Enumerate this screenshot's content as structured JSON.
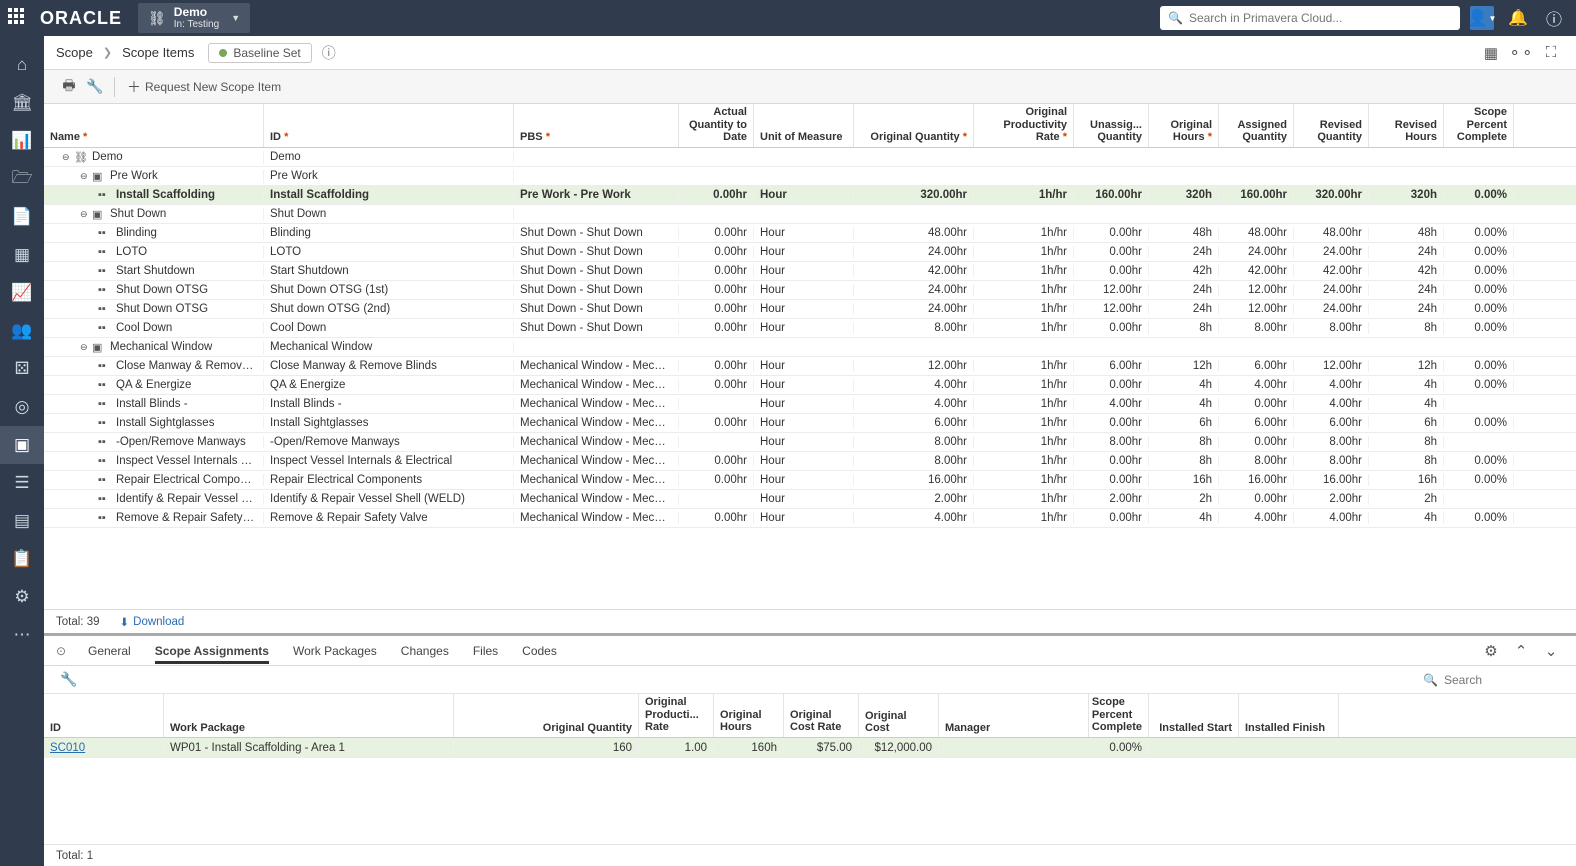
{
  "topbar": {
    "logo": "ORACLE",
    "project_name": "Demo",
    "project_sub": "In: Testing",
    "search_placeholder": "Search in Primavera Cloud..."
  },
  "breadcrumb": {
    "root": "Scope",
    "current": "Scope Items",
    "baseline_label": "Baseline Set"
  },
  "toolbar": {
    "request_btn": "Request New Scope Item"
  },
  "columns": {
    "name": "Name",
    "id": "ID",
    "pbs": "PBS",
    "actual_qty": "Actual Quantity to Date",
    "uom": "Unit of Measure",
    "orig_qty": "Original Quantity",
    "rate": "Original Productivity Rate",
    "unasg": "Unassig... Quantity",
    "orig_hours": "Original Hours",
    "asg_qty": "Assigned Quantity",
    "rev_qty": "Revised Quantity",
    "rev_hours": "Revised Hours",
    "spc": "Scope Percent Complete"
  },
  "rows": [
    {
      "type": "group",
      "level": 0,
      "name": "Demo",
      "id": "Demo"
    },
    {
      "type": "group",
      "level": 1,
      "name": "Pre Work",
      "id": "Pre Work"
    },
    {
      "type": "leaf",
      "level": 2,
      "sel": true,
      "name": "Install Scaffolding",
      "id": "Install Scaffolding",
      "pbs": "Pre Work - Pre Work",
      "actq": "0.00hr",
      "uom": "Hour",
      "origq": "320.00hr",
      "rate": "1h/hr",
      "unasg": "160.00hr",
      "origh": "320h",
      "asgq": "160.00hr",
      "revq": "320.00hr",
      "revh": "320h",
      "spc": "0.00%"
    },
    {
      "type": "group",
      "level": 1,
      "name": "Shut Down",
      "id": "Shut Down"
    },
    {
      "type": "leaf",
      "level": 2,
      "name": "Blinding",
      "id": "Blinding",
      "pbs": "Shut Down - Shut Down",
      "actq": "0.00hr",
      "uom": "Hour",
      "origq": "48.00hr",
      "rate": "1h/hr",
      "unasg": "0.00hr",
      "origh": "48h",
      "asgq": "48.00hr",
      "revq": "48.00hr",
      "revh": "48h",
      "spc": "0.00%"
    },
    {
      "type": "leaf",
      "level": 2,
      "name": "LOTO",
      "id": "LOTO",
      "pbs": "Shut Down - Shut Down",
      "actq": "0.00hr",
      "uom": "Hour",
      "origq": "24.00hr",
      "rate": "1h/hr",
      "unasg": "0.00hr",
      "origh": "24h",
      "asgq": "24.00hr",
      "revq": "24.00hr",
      "revh": "24h",
      "spc": "0.00%"
    },
    {
      "type": "leaf",
      "level": 2,
      "name": "Start Shutdown",
      "id": "Start Shutdown",
      "pbs": "Shut Down - Shut Down",
      "actq": "0.00hr",
      "uom": "Hour",
      "origq": "42.00hr",
      "rate": "1h/hr",
      "unasg": "0.00hr",
      "origh": "42h",
      "asgq": "42.00hr",
      "revq": "42.00hr",
      "revh": "42h",
      "spc": "0.00%"
    },
    {
      "type": "leaf",
      "level": 2,
      "name": "Shut Down OTSG",
      "id": "Shut Down OTSG (1st)",
      "pbs": "Shut Down - Shut Down",
      "actq": "0.00hr",
      "uom": "Hour",
      "origq": "24.00hr",
      "rate": "1h/hr",
      "unasg": "12.00hr",
      "origh": "24h",
      "asgq": "12.00hr",
      "revq": "24.00hr",
      "revh": "24h",
      "spc": "0.00%"
    },
    {
      "type": "leaf",
      "level": 2,
      "gear": true,
      "name": "Shut Down OTSG",
      "id": "Shut down OTSG (2nd)",
      "pbs": "Shut Down - Shut Down",
      "actq": "0.00hr",
      "uom": "Hour",
      "origq": "24.00hr",
      "rate": "1h/hr",
      "unasg": "12.00hr",
      "origh": "24h",
      "asgq": "12.00hr",
      "revq": "24.00hr",
      "revh": "24h",
      "spc": "0.00%"
    },
    {
      "type": "leaf",
      "level": 2,
      "name": "Cool Down",
      "id": "Cool Down",
      "pbs": "Shut Down - Shut Down",
      "actq": "0.00hr",
      "uom": "Hour",
      "origq": "8.00hr",
      "rate": "1h/hr",
      "unasg": "0.00hr",
      "origh": "8h",
      "asgq": "8.00hr",
      "revq": "8.00hr",
      "revh": "8h",
      "spc": "0.00%"
    },
    {
      "type": "group",
      "level": 1,
      "name": "Mechanical Window",
      "id": "Mechanical Window"
    },
    {
      "type": "leaf",
      "level": 2,
      "name": "Close Manway & Remove Bli...",
      "id": "Close Manway & Remove Blinds",
      "pbs": "Mechanical Window - Mecha...",
      "actq": "0.00hr",
      "uom": "Hour",
      "origq": "12.00hr",
      "rate": "1h/hr",
      "unasg": "6.00hr",
      "origh": "12h",
      "asgq": "6.00hr",
      "revq": "12.00hr",
      "revh": "12h",
      "spc": "0.00%"
    },
    {
      "type": "leaf",
      "level": 2,
      "name": "QA & Energize",
      "id": "QA & Energize",
      "pbs": "Mechanical Window - Mecha...",
      "actq": "0.00hr",
      "uom": "Hour",
      "origq": "4.00hr",
      "rate": "1h/hr",
      "unasg": "0.00hr",
      "origh": "4h",
      "asgq": "4.00hr",
      "revq": "4.00hr",
      "revh": "4h",
      "spc": "0.00%"
    },
    {
      "type": "leaf",
      "level": 2,
      "name": "Install Blinds -",
      "id": "Install Blinds -",
      "pbs": "Mechanical Window - Mecha...",
      "actq": "",
      "uom": "Hour",
      "origq": "4.00hr",
      "rate": "1h/hr",
      "unasg": "4.00hr",
      "origh": "4h",
      "asgq": "0.00hr",
      "revq": "4.00hr",
      "revh": "4h",
      "spc": ""
    },
    {
      "type": "leaf",
      "level": 2,
      "name": "Install Sightglasses",
      "id": "Install Sightglasses",
      "pbs": "Mechanical Window - Mecha...",
      "actq": "0.00hr",
      "uom": "Hour",
      "origq": "6.00hr",
      "rate": "1h/hr",
      "unasg": "0.00hr",
      "origh": "6h",
      "asgq": "6.00hr",
      "revq": "6.00hr",
      "revh": "6h",
      "spc": "0.00%"
    },
    {
      "type": "leaf",
      "level": 2,
      "name": "-Open/Remove Manways",
      "id": "-Open/Remove Manways",
      "pbs": "Mechanical Window - Mecha...",
      "actq": "",
      "uom": "Hour",
      "origq": "8.00hr",
      "rate": "1h/hr",
      "unasg": "8.00hr",
      "origh": "8h",
      "asgq": "0.00hr",
      "revq": "8.00hr",
      "revh": "8h",
      "spc": ""
    },
    {
      "type": "leaf",
      "level": 2,
      "name": "Inspect Vessel Internals & El...",
      "id": "Inspect Vessel Internals & Electrical",
      "pbs": "Mechanical Window - Mecha...",
      "actq": "0.00hr",
      "uom": "Hour",
      "origq": "8.00hr",
      "rate": "1h/hr",
      "unasg": "0.00hr",
      "origh": "8h",
      "asgq": "8.00hr",
      "revq": "8.00hr",
      "revh": "8h",
      "spc": "0.00%"
    },
    {
      "type": "leaf",
      "level": 2,
      "name": "Repair Electrical Components",
      "id": "Repair Electrical Components",
      "pbs": "Mechanical Window - Mecha...",
      "actq": "0.00hr",
      "uom": "Hour",
      "origq": "16.00hr",
      "rate": "1h/hr",
      "unasg": "0.00hr",
      "origh": "16h",
      "asgq": "16.00hr",
      "revq": "16.00hr",
      "revh": "16h",
      "spc": "0.00%"
    },
    {
      "type": "leaf",
      "level": 2,
      "name": "Identify & Repair Vessel Shell...",
      "id": "Identify & Repair Vessel Shell (WELD)",
      "pbs": "Mechanical Window - Mecha...",
      "actq": "",
      "uom": "Hour",
      "origq": "2.00hr",
      "rate": "1h/hr",
      "unasg": "2.00hr",
      "origh": "2h",
      "asgq": "0.00hr",
      "revq": "2.00hr",
      "revh": "2h",
      "spc": ""
    },
    {
      "type": "leaf",
      "level": 2,
      "name": "Remove & Repair Safety Valve",
      "id": "Remove & Repair Safety Valve",
      "pbs": "Mechanical Window - Mecha...",
      "actq": "0.00hr",
      "uom": "Hour",
      "origq": "4.00hr",
      "rate": "1h/hr",
      "unasg": "0.00hr",
      "origh": "4h",
      "asgq": "4.00hr",
      "revq": "4.00hr",
      "revh": "4h",
      "spc": "0.00%"
    }
  ],
  "grid_footer": {
    "total_label": "Total:",
    "total_value": "39",
    "download": "Download"
  },
  "detail": {
    "tabs": [
      "General",
      "Scope Assignments",
      "Work Packages",
      "Changes",
      "Files",
      "Codes"
    ],
    "active_tab": 1,
    "search_placeholder": "Search",
    "columns": {
      "id": "ID",
      "wp": "Work Package",
      "oq": "Original Quantity",
      "rate": "Original Producti... Rate",
      "oh": "Original Hours",
      "cr": "Original Cost Rate",
      "oc": "Original Cost",
      "mgr": "Manager",
      "spc": "Scope Percent Complete",
      "is": "Installed Start",
      "if": "Installed Finish"
    },
    "row": {
      "id": "SC010",
      "wp": "WP01 - Install Scaffolding - Area 1",
      "oq": "160",
      "rate": "1.00",
      "oh": "160h",
      "cr": "$75.00",
      "oc": "$12,000.00",
      "mgr": "",
      "spc": "0.00%",
      "is": "",
      "if": ""
    },
    "footer": {
      "total_label": "Total:",
      "total_value": "1"
    }
  },
  "leftnav": [
    "⌂",
    "🏛",
    "📊",
    "🗁",
    "📄",
    "▦",
    "📈",
    "👥",
    "⚄",
    "◎",
    "▣",
    "☰",
    "▤",
    "📋",
    "⚙",
    "⋯"
  ],
  "leftnav_active": 10
}
